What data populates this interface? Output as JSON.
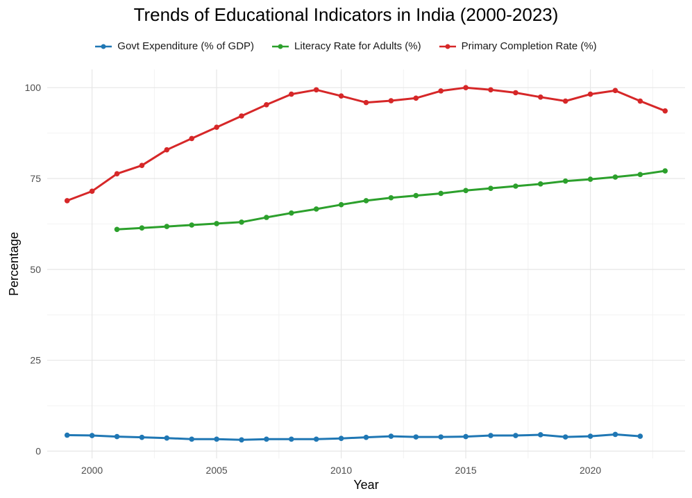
{
  "chart_data": {
    "type": "line",
    "title": "Trends of Educational Indicators in India (2000-2023)",
    "xlabel": "Year",
    "ylabel": "Percentage",
    "xlim": [
      1998.2,
      2023.8
    ],
    "ylim": [
      -2,
      105
    ],
    "xticks": [
      2000,
      2005,
      2010,
      2015,
      2020
    ],
    "yticks": [
      0,
      25,
      50,
      75,
      100
    ],
    "grid": true,
    "legend_position": "top-center",
    "series": [
      {
        "name": "Govt Expenditure (% of GDP)",
        "color": "#1f77b4",
        "x": [
          1999,
          2000,
          2001,
          2002,
          2003,
          2004,
          2005,
          2006,
          2007,
          2008,
          2009,
          2010,
          2011,
          2012,
          2013,
          2014,
          2015,
          2016,
          2017,
          2018,
          2019,
          2020,
          2021,
          2022
        ],
        "values": [
          4.4,
          4.3,
          4.0,
          3.8,
          3.6,
          3.3,
          3.3,
          3.1,
          3.3,
          3.3,
          3.3,
          3.5,
          3.8,
          4.1,
          3.9,
          3.9,
          4.0,
          4.3,
          4.3,
          4.5,
          3.9,
          4.1,
          4.6,
          4.1
        ]
      },
      {
        "name": "Literacy Rate for Adults (%)",
        "color": "#2ca02c",
        "x": [
          2001,
          2002,
          2003,
          2004,
          2005,
          2006,
          2007,
          2008,
          2009,
          2010,
          2011,
          2012,
          2013,
          2014,
          2015,
          2016,
          2017,
          2018,
          2019,
          2020,
          2021,
          2022,
          2023
        ],
        "values": [
          61.0,
          61.4,
          61.8,
          62.2,
          62.6,
          63.0,
          64.3,
          65.5,
          66.6,
          67.8,
          68.9,
          69.7,
          70.3,
          70.9,
          71.7,
          72.3,
          72.9,
          73.5,
          74.3,
          74.8,
          75.4,
          76.1,
          77.1
        ]
      },
      {
        "name": "Primary Completion Rate (%)",
        "color": "#d62728",
        "x": [
          1999,
          2000,
          2001,
          2002,
          2003,
          2004,
          2005,
          2006,
          2007,
          2008,
          2009,
          2010,
          2011,
          2012,
          2013,
          2014,
          2015,
          2016,
          2017,
          2018,
          2019,
          2020,
          2021,
          2022,
          2023
        ],
        "values": [
          68.9,
          71.5,
          76.3,
          78.6,
          82.9,
          86.0,
          89.1,
          92.2,
          95.3,
          98.2,
          99.4,
          97.7,
          95.9,
          96.4,
          97.1,
          99.1,
          100.0,
          99.4,
          98.6,
          97.4,
          96.3,
          98.2,
          99.2,
          96.3,
          93.6
        ]
      }
    ]
  }
}
